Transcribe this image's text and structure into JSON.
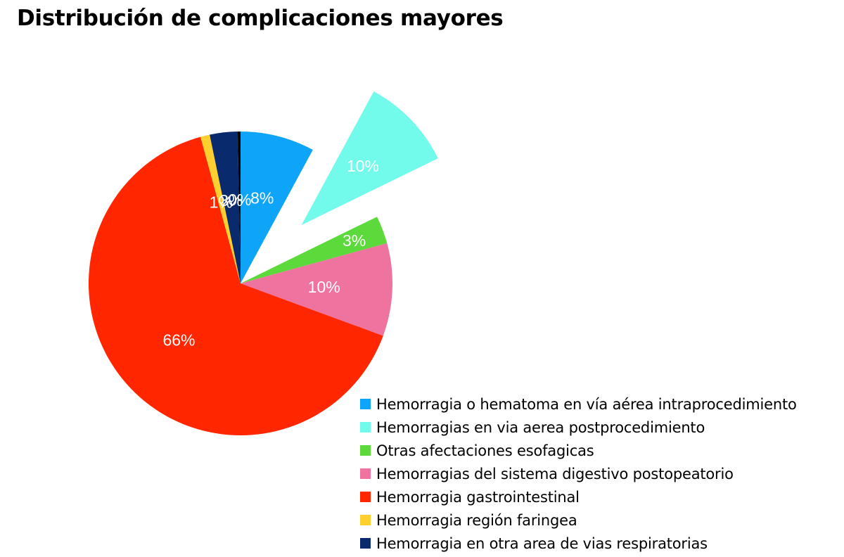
{
  "chart_data": {
    "type": "pie",
    "title": "Distribución de complicaciones mayores",
    "start_angle_deg": 0,
    "direction": "clockwise",
    "slices": [
      {
        "name": "Hemorragia o hematoma en vía aérea intraprocedimiento",
        "value": 8,
        "label": "8%",
        "color": "#0EA5F8",
        "exploded": false
      },
      {
        "name": "Hemorragias en via aerea postprocedimiento",
        "value": 10,
        "label": "10%",
        "color": "#72FBEB",
        "exploded": true
      },
      {
        "name": "Otras afectaciones esofagicas",
        "value": 3,
        "label": "3%",
        "color": "#5CD93B",
        "exploded": false
      },
      {
        "name": "Hemorragias del sistema digestivo postopeatorio",
        "value": 10,
        "label": "10%",
        "color": "#EE739F",
        "exploded": false
      },
      {
        "name": "Hemorragia gastrointestinal",
        "value": 66,
        "label": "66%",
        "color": "#FF2600",
        "exploded": false
      },
      {
        "name": "Hemorragia región faringea",
        "value": 1,
        "label": "1%",
        "color": "#FED02F",
        "exploded": false
      },
      {
        "name": "Hemorragia en otra area de vias respiratorias",
        "value": 3,
        "label": "3%",
        "color": "#0A2A6E",
        "exploded": false
      },
      {
        "name": "",
        "value": 0.3,
        "label": "0%",
        "color": "#000000",
        "exploded": false
      }
    ],
    "legend_position": "bottom-right"
  }
}
